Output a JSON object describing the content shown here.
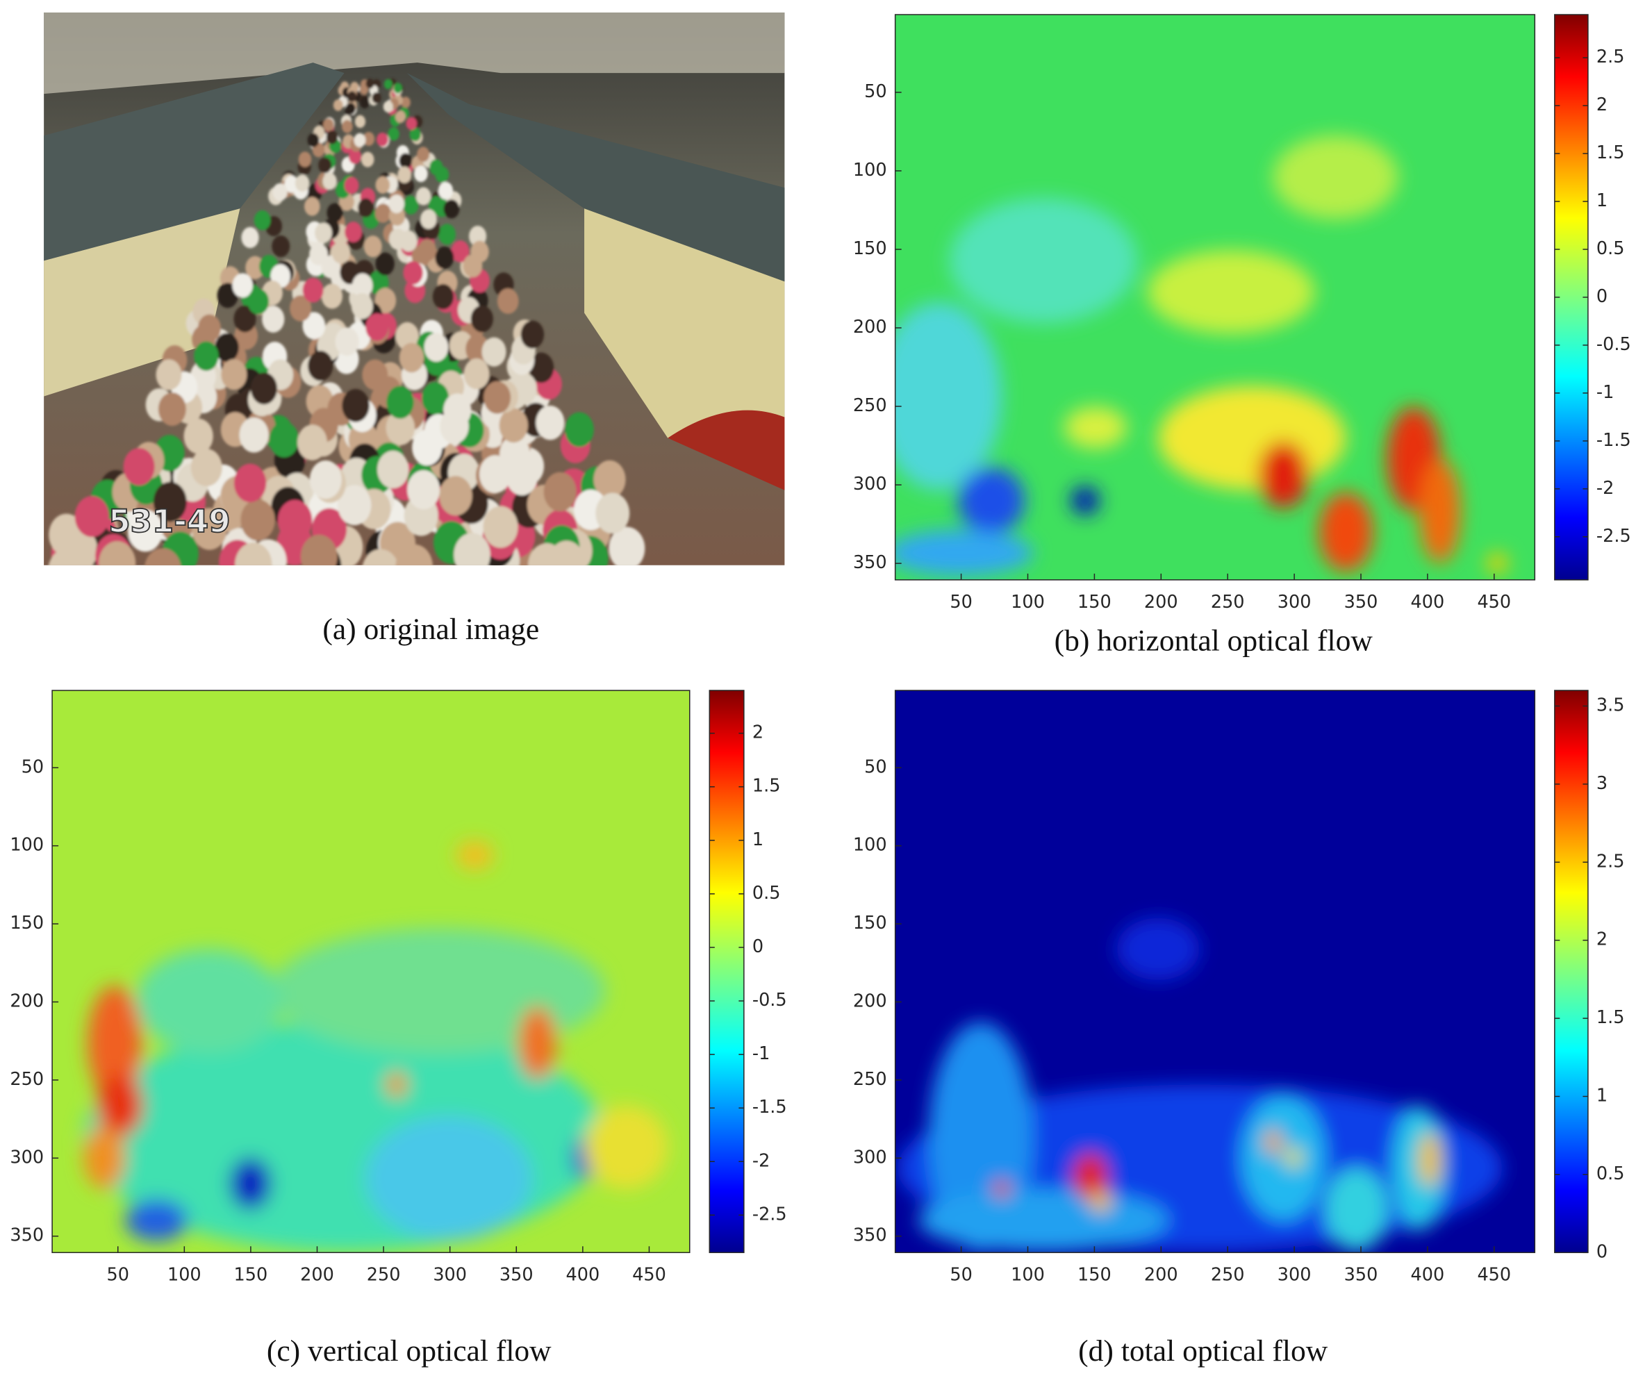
{
  "image": {
    "overlay_text": "531-49",
    "caption": "(a) original image"
  },
  "chart_data": [
    {
      "type": "heatmap",
      "caption": "(b) horizontal optical flow",
      "colormap": "jet",
      "xlim": [
        0.5,
        480.5
      ],
      "ylim": [
        0.5,
        360.5
      ],
      "y_reversed": true,
      "xticks": [
        50,
        100,
        150,
        200,
        250,
        300,
        350,
        400,
        450
      ],
      "yticks": [
        50,
        100,
        150,
        200,
        250,
        300,
        350
      ],
      "clim": [
        -2.95,
        2.95
      ],
      "cticks": [
        -2.5,
        -2,
        -1.5,
        -1,
        -0.5,
        0,
        0.5,
        1,
        1.5,
        2,
        2.5
      ]
    },
    {
      "type": "heatmap",
      "caption": "(c) vertical optical flow",
      "colormap": "jet",
      "xlim": [
        0.5,
        480.5
      ],
      "ylim": [
        0.5,
        360.5
      ],
      "y_reversed": true,
      "xticks": [
        50,
        100,
        150,
        200,
        250,
        300,
        350,
        400,
        450
      ],
      "yticks": [
        50,
        100,
        150,
        200,
        250,
        300,
        350
      ],
      "clim": [
        -2.85,
        2.4
      ],
      "cticks": [
        -2.5,
        -2,
        -1.5,
        -1,
        -0.5,
        0,
        0.5,
        1,
        1.5,
        2
      ]
    },
    {
      "type": "heatmap",
      "caption": "(d) total optical flow",
      "colormap": "jet",
      "xlim": [
        0.5,
        480.5
      ],
      "ylim": [
        0.5,
        360.5
      ],
      "y_reversed": true,
      "xticks": [
        50,
        100,
        150,
        200,
        250,
        300,
        350,
        400,
        450
      ],
      "yticks": [
        50,
        100,
        150,
        200,
        250,
        300,
        350
      ],
      "clim": [
        0,
        3.6
      ],
      "cticks": [
        0,
        0.5,
        1,
        1.5,
        2,
        2.5,
        3,
        3.5
      ]
    }
  ]
}
